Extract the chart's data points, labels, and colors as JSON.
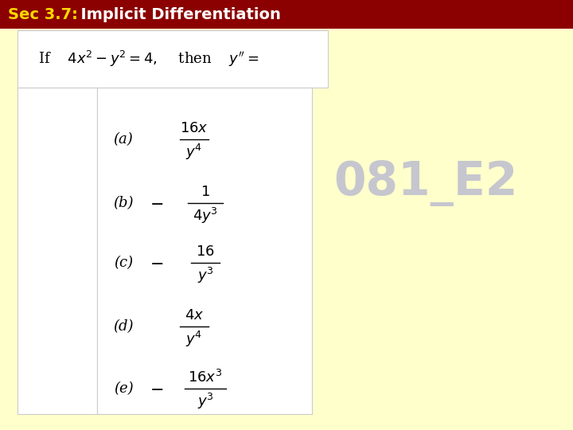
{
  "title_bg": "#8B0000",
  "title_yellow": "#FFD700",
  "title_white": "#FFFFFF",
  "bg_color": "#FFFFCC",
  "white": "#FFFFFF",
  "watermark": "081_E2",
  "watermark_color": "#C0C0D0",
  "options": [
    {
      "label": "(a)",
      "num": "16x",
      "den": "y^4",
      "sign": ""
    },
    {
      "label": "(b)",
      "num": "1",
      "den": "4y^3",
      "sign": "-"
    },
    {
      "label": "(c)",
      "num": "16",
      "den": "y^3",
      "sign": "-"
    },
    {
      "label": "(d)",
      "num": "4x",
      "den": "y^4",
      "sign": ""
    },
    {
      "label": "(e)",
      "num": "16x^3",
      "den": "y^3",
      "sign": "-"
    }
  ],
  "title_sec": "Sec 3.7:",
  "title_rest": "  Implicit Differentiation",
  "title_fontsize": 14,
  "option_fontsize": 13,
  "label_fontsize": 13
}
